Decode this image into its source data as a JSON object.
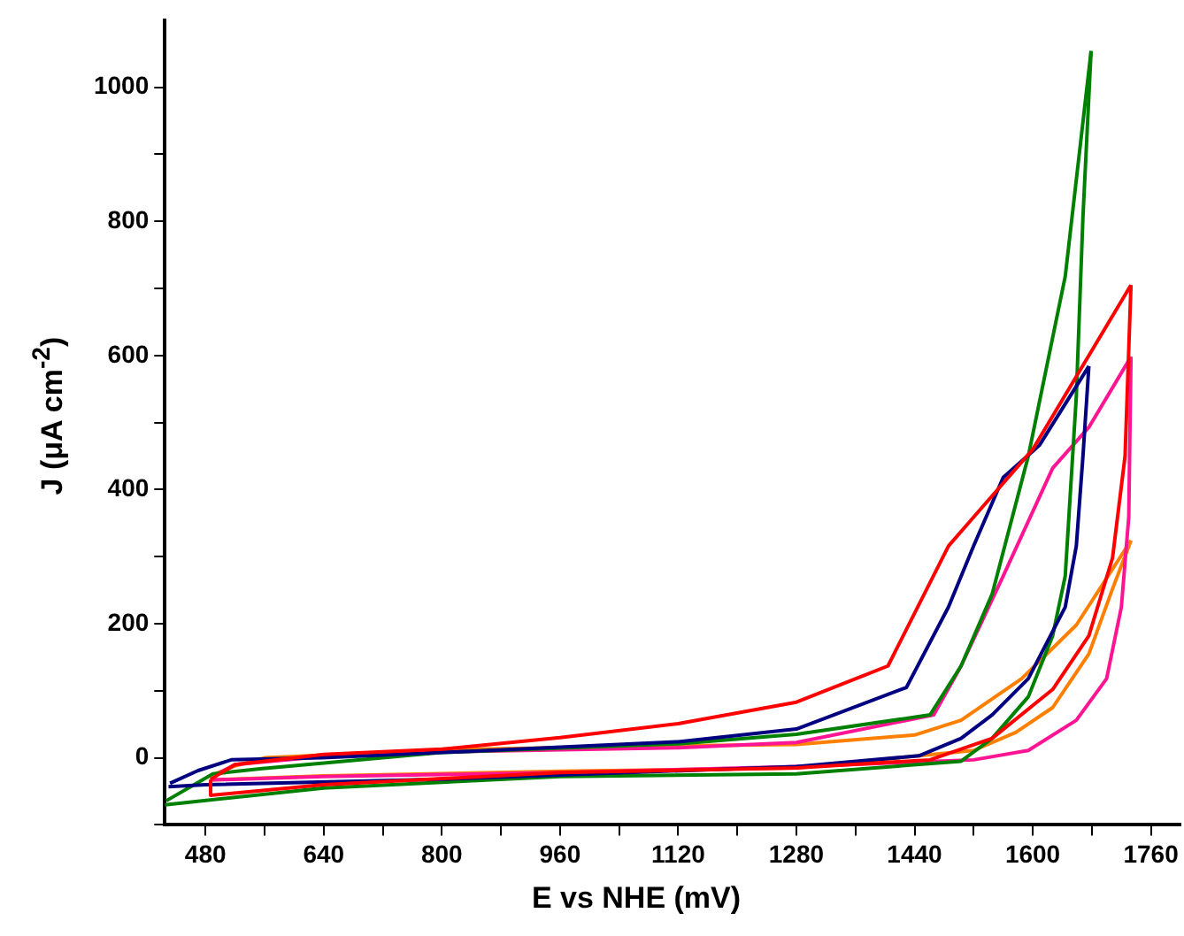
{
  "chart_data": {
    "type": "line",
    "xlabel": "E vs NHE (mV)",
    "ylabel": "J (μA cm$^{-2}$)",
    "xlim": [
      425,
      1800
    ],
    "ylim": [
      -100,
      1100
    ],
    "xticks": [
      480,
      {
        "value": 560,
        "label": null
      },
      640,
      {
        "value": 720,
        "label": null
      },
      800,
      {
        "value": 880,
        "label": null
      },
      960,
      {
        "value": 1040,
        "label": null
      },
      1120,
      {
        "value": 1200,
        "label": null
      },
      1280,
      {
        "value": 1360,
        "label": null
      },
      1440,
      {
        "value": 1520,
        "label": null
      },
      1600,
      {
        "value": 1680,
        "label": null
      },
      1760
    ],
    "yticks": [
      {
        "value": -100,
        "label": null
      },
      0,
      {
        "value": 100,
        "label": null
      },
      200,
      {
        "value": 300,
        "label": null
      },
      400,
      {
        "value": 500,
        "label": null
      },
      600,
      {
        "value": 700,
        "label": null
      },
      800,
      {
        "value": 900,
        "label": null
      },
      1000
    ],
    "grid": false,
    "legend": false,
    "marker": "none",
    "line_style": "solid",
    "series": [
      {
        "color": "#ff0000",
        "x": [
          487,
          520,
          640,
          800,
          960,
          1120,
          1280,
          1404,
          1486,
          1520,
          1600,
          1733
        ],
        "values": [
          -32,
          -10,
          5,
          13,
          30,
          51,
          83,
          137,
          316,
          359,
          460,
          705
        ]
      },
      {
        "color": "#ff0000",
        "x": [
          487,
          487,
          640,
          960,
          1280,
          1461,
          1545,
          1627,
          1676,
          1708,
          1725,
          1733
        ],
        "values": [
          -34,
          -56,
          -40,
          -22,
          -15,
          -3,
          29,
          102,
          182,
          298,
          450,
          705
        ]
      },
      {
        "color": "#000080",
        "x": [
          432,
          470,
          515,
          638,
          800,
          1120,
          1280,
          1429,
          1486,
          1520,
          1560,
          1609,
          1676
        ],
        "values": [
          -38,
          -19,
          -3,
          0,
          8,
          24,
          43,
          105,
          225,
          316,
          418,
          466,
          584
        ]
      },
      {
        "color": "#000080",
        "x": [
          430,
          480,
          800,
          1280,
          1446,
          1503,
          1545,
          1594,
          1644,
          1659,
          1668,
          1676
        ],
        "values": [
          -43,
          -40,
          -32,
          -13,
          3,
          29,
          64,
          118,
          225,
          316,
          450,
          584
        ]
      },
      {
        "color": "#008000",
        "x": [
          427,
          490,
          557,
          800,
          1120,
          1280,
          1461,
          1503,
          1545,
          1594,
          1644,
          1679
        ],
        "values": [
          -64,
          -24,
          -16,
          8,
          21,
          35,
          64,
          137,
          244,
          450,
          718,
          1054
        ]
      },
      {
        "color": "#008000",
        "x": [
          425,
          640,
          960,
          1280,
          1503,
          1545,
          1594,
          1627,
          1644,
          1659,
          1668,
          1679
        ],
        "values": [
          -70,
          -45,
          -28,
          -24,
          -5,
          29,
          91,
          182,
          271,
          539,
          807,
          1054
        ]
      },
      {
        "color": "#ff1493",
        "x": [
          493,
          520,
          640,
          800,
          1120,
          1280,
          1466,
          1503,
          1560,
          1627,
          1676,
          1733
        ],
        "values": [
          -26,
          -10,
          2,
          9,
          15,
          23,
          64,
          137,
          271,
          432,
          493,
          598
        ]
      },
      {
        "color": "#ff1493",
        "x": [
          488,
          640,
          960,
          1280,
          1520,
          1594,
          1659,
          1700,
          1720,
          1730,
          1733
        ],
        "values": [
          -33,
          -28,
          -22,
          -13,
          -3,
          11,
          56,
          118,
          225,
          359,
          598
        ]
      },
      {
        "color": "#ff8000",
        "x": [
          493,
          520,
          560,
          800,
          1120,
          1280,
          1440,
          1503,
          1585,
          1659,
          1733
        ],
        "values": [
          -24,
          -12,
          0,
          12,
          18,
          20,
          34,
          56,
          118,
          198,
          324
        ]
      },
      {
        "color": "#ff8000",
        "x": [
          488,
          640,
          960,
          1280,
          1520,
          1577,
          1627,
          1676,
          1708,
          1733
        ],
        "values": [
          -33,
          -27,
          -20,
          -15,
          11,
          38,
          75,
          155,
          252,
          324
        ]
      }
    ]
  }
}
